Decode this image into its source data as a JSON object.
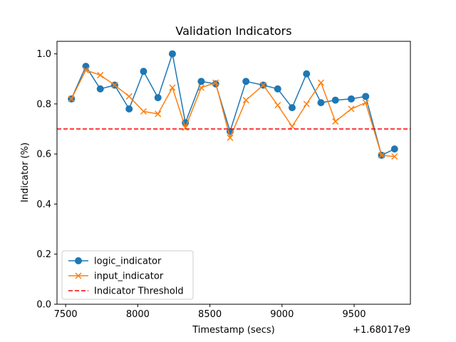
{
  "chart_data": {
    "type": "line",
    "title": "Validation Indicators",
    "xlabel": "Timestamp (secs)",
    "ylabel": "Indicator (%)",
    "x_offset_label": "+1.68017e9",
    "xlim": [
      7440,
      9890
    ],
    "ylim": [
      0.0,
      1.05
    ],
    "x_ticks": [
      7500,
      8000,
      8500,
      9000,
      9500
    ],
    "x_tick_labels": [
      "7500",
      "8000",
      "8500",
      "9000",
      "9500"
    ],
    "y_ticks": [
      0.0,
      0.2,
      0.4,
      0.6,
      0.8,
      1.0
    ],
    "y_tick_labels": [
      "0.0",
      "0.2",
      "0.4",
      "0.6",
      "0.8",
      "1.0"
    ],
    "grid": false,
    "legend_position": "lower-left",
    "x": [
      7540,
      7640,
      7740,
      7840,
      7940,
      8040,
      8140,
      8240,
      8330,
      8440,
      8540,
      8640,
      8750,
      8870,
      8970,
      9070,
      9170,
      9270,
      9370,
      9480,
      9580,
      9690,
      9780
    ],
    "series": [
      {
        "name": "logic_indicator",
        "color": "#1f77b4",
        "marker": "circle",
        "values": [
          0.82,
          0.95,
          0.86,
          0.875,
          0.78,
          0.93,
          0.825,
          1.0,
          0.725,
          0.89,
          0.88,
          0.69,
          0.89,
          0.875,
          0.86,
          0.785,
          0.92,
          0.805,
          0.815,
          0.82,
          0.83,
          0.595,
          0.62
        ]
      },
      {
        "name": "input_indicator",
        "color": "#ff7f0e",
        "marker": "x",
        "values": [
          0.82,
          0.935,
          0.915,
          0.875,
          0.83,
          0.77,
          0.76,
          0.865,
          0.705,
          0.865,
          0.885,
          0.665,
          0.815,
          0.875,
          0.795,
          0.71,
          0.8,
          0.885,
          0.73,
          0.78,
          0.805,
          0.595,
          0.59
        ]
      }
    ],
    "threshold": {
      "name": "Indicator Threshold",
      "value": 0.7,
      "color": "#ff0000",
      "style": "dashed"
    }
  }
}
